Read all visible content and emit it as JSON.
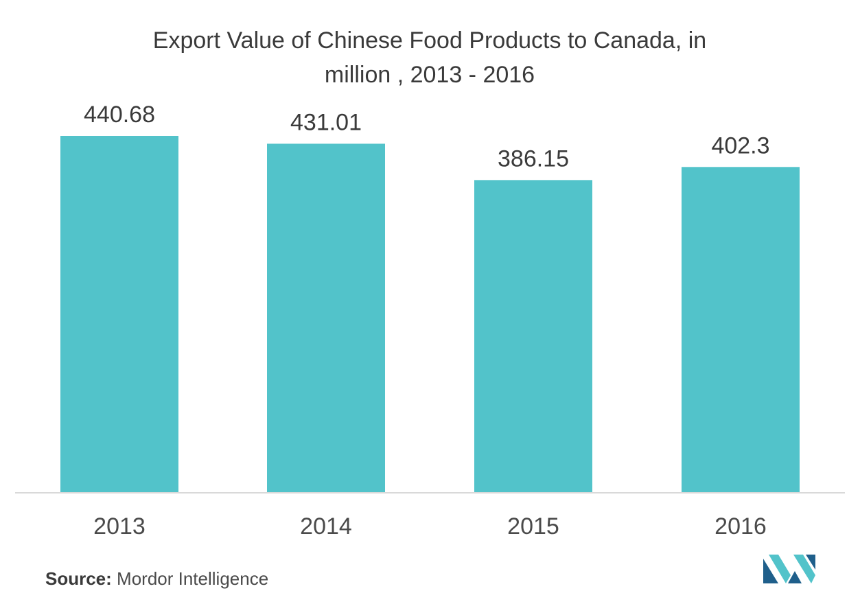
{
  "chart_data": {
    "type": "bar",
    "title_lines": [
      "Export Value of Chinese Food Products to  Canada, in",
      "million , 2013 - 2016"
    ],
    "categories": [
      "2013",
      "2014",
      "2015",
      "2016"
    ],
    "values": [
      440.68,
      431.01,
      386.15,
      402.3
    ],
    "value_labels": [
      "440.68",
      "431.01",
      "386.15",
      "402.3"
    ],
    "xlabel": "",
    "ylabel": "",
    "ylim": [
      0,
      480
    ],
    "grid": false,
    "bar_color": "#52c3ca",
    "axis_color": "#d9d9d9"
  },
  "footer": {
    "source_label": "Source:",
    "source_text": "Mordor Intelligence"
  },
  "logo": {
    "icon": "mordor-intelligence-logo",
    "colors": [
      "#1f5f8b",
      "#52c3ca"
    ]
  }
}
